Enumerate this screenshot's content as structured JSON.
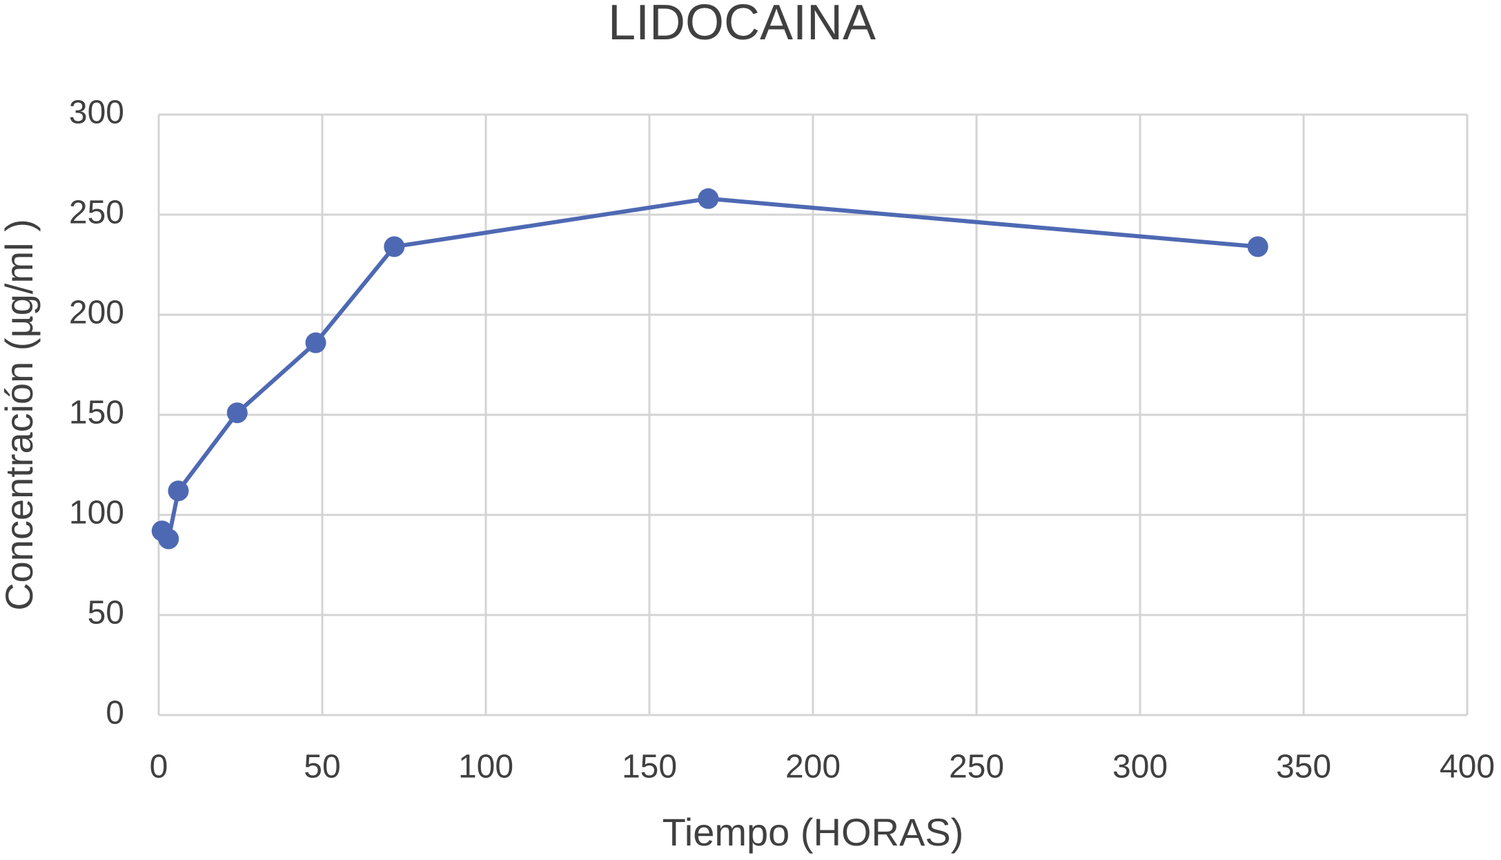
{
  "chart_data": {
    "type": "line",
    "title": "LIDOCAINA",
    "x_label": "Tiempo (HORAS)",
    "y_label": "Concentración (µg/ml )",
    "x": [
      1,
      3,
      6,
      24,
      48,
      72,
      168,
      336
    ],
    "series": [
      {
        "name": "Lidocaina",
        "color": "#4e69b3",
        "values": [
          92,
          88,
          112,
          151,
          186,
          234,
          258,
          234
        ]
      }
    ],
    "xlim": [
      0,
      400
    ],
    "xticks": [
      0,
      50,
      100,
      150,
      200,
      250,
      300,
      350,
      400
    ],
    "ylim": [
      0,
      300
    ],
    "yticks": [
      0,
      50,
      100,
      150,
      200,
      250,
      300
    ],
    "grid": true
  }
}
